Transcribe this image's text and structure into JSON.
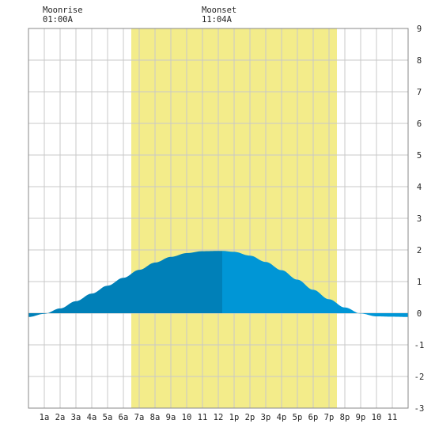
{
  "chart_data": {
    "type": "area",
    "title": "",
    "xlabel": "",
    "ylabel": "",
    "xlim": [
      0,
      24
    ],
    "ylim": [
      -3,
      9
    ],
    "yticks": [
      "9",
      "8",
      "7",
      "6",
      "5",
      "4",
      "3",
      "2",
      "1",
      "0",
      "-1",
      "-2",
      "-3"
    ],
    "xticks": [
      "1a",
      "2a",
      "3a",
      "4a",
      "5a",
      "6a",
      "7a",
      "8a",
      "9a",
      "10",
      "11",
      "12",
      "1p",
      "2p",
      "3p",
      "4p",
      "5p",
      "6p",
      "7p",
      "8p",
      "9p",
      "10",
      "11"
    ],
    "grid": true,
    "daylight": {
      "start_hour": 6.5,
      "end_hour": 19.5,
      "color": "#f3ec8a"
    },
    "moon_events": [
      {
        "label": "Moonrise",
        "time": "01:00A",
        "hour": 1.0
      },
      {
        "label": "Moonset",
        "time": "11:04A",
        "hour": 11.07
      }
    ],
    "series": [
      {
        "x": [
          0,
          1,
          2,
          3,
          4,
          5,
          6,
          7,
          8,
          9,
          10,
          11,
          12,
          12.25,
          13,
          14,
          15,
          16,
          17,
          18,
          19,
          20,
          21,
          22,
          23,
          24
        ],
        "values": [
          -0.12,
          -0.02,
          0.15,
          0.38,
          0.62,
          0.87,
          1.12,
          1.37,
          1.6,
          1.78,
          1.9,
          1.96,
          1.97,
          1.97,
          1.94,
          1.82,
          1.62,
          1.36,
          1.06,
          0.74,
          0.44,
          0.18,
          -0.01,
          -0.1,
          -0.11,
          -0.12
        ]
      }
    ],
    "split_hour": 12.25,
    "colors": {
      "before": "#0080b8",
      "after": "#0096d6",
      "grid": "#c8c8c8",
      "frame": "#888888"
    }
  }
}
